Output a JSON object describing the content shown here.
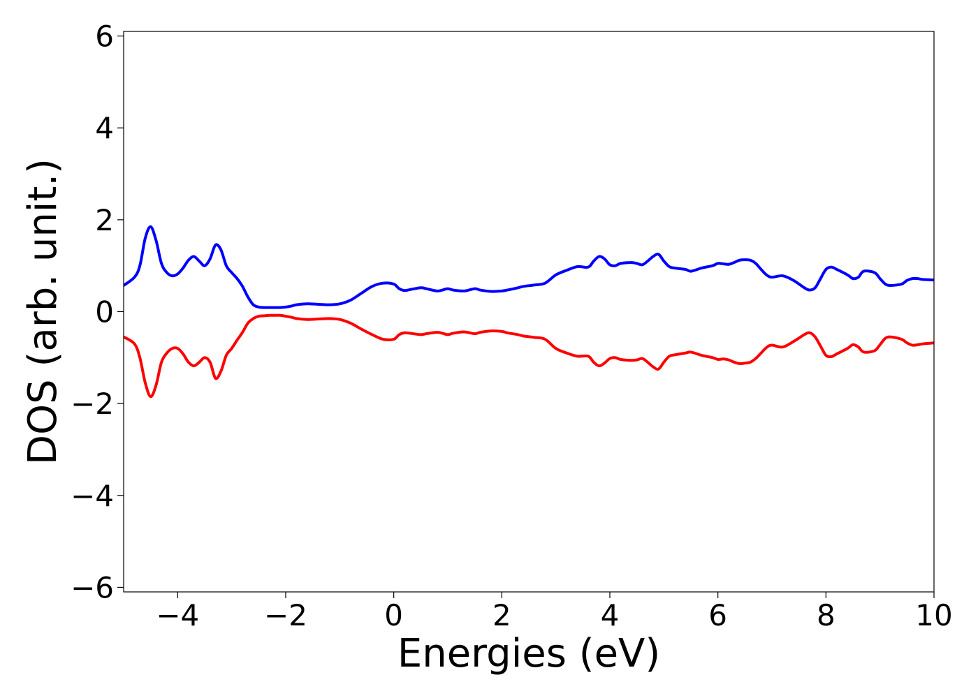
{
  "chart_data": {
    "type": "line",
    "xlabel": "Energies (eV)",
    "ylabel": "DOS (arb. unit.)",
    "xlim": [
      -5,
      10
    ],
    "ylim": [
      -6.1,
      6.1
    ],
    "xticks": [
      -4,
      -2,
      0,
      2,
      4,
      6,
      8,
      10
    ],
    "xtick_labels": [
      "−4",
      "−2",
      "0",
      "2",
      "4",
      "6",
      "8",
      "10"
    ],
    "yticks": [
      -6,
      -4,
      -2,
      0,
      2,
      4,
      6
    ],
    "ytick_labels": [
      "−6",
      "−4",
      "−2",
      "0",
      "2",
      "4",
      "6"
    ],
    "grid": false,
    "legend": "none",
    "series": [
      {
        "color": "#0000ff",
        "x": [
          -5.0,
          -4.8,
          -4.7,
          -4.6,
          -4.5,
          -4.4,
          -4.3,
          -4.2,
          -4.1,
          -4.0,
          -3.9,
          -3.8,
          -3.7,
          -3.6,
          -3.5,
          -3.4,
          -3.3,
          -3.2,
          -3.1,
          -3.0,
          -2.9,
          -2.8,
          -2.7,
          -2.6,
          -2.5,
          -2.4,
          -2.3,
          -2.2,
          -2.1,
          -2.0,
          -1.9,
          -1.8,
          -1.6,
          -1.4,
          -1.2,
          -1.0,
          -0.8,
          -0.6,
          -0.4,
          -0.2,
          0.0,
          0.1,
          0.2,
          0.3,
          0.5,
          0.6,
          0.8,
          0.9,
          1.0,
          1.1,
          1.3,
          1.5,
          1.6,
          1.8,
          2.0,
          2.1,
          2.3,
          2.4,
          2.6,
          2.8,
          3.0,
          3.2,
          3.4,
          3.6,
          3.7,
          3.8,
          3.9,
          4.0,
          4.1,
          4.2,
          4.4,
          4.5,
          4.6,
          4.7,
          4.8,
          4.9,
          5.0,
          5.1,
          5.2,
          5.4,
          5.5,
          5.7,
          5.9,
          6.0,
          6.1,
          6.2,
          6.3,
          6.4,
          6.5,
          6.6,
          6.7,
          6.8,
          6.9,
          7.0,
          7.2,
          7.4,
          7.6,
          7.7,
          7.8,
          7.9,
          8.0,
          8.1,
          8.2,
          8.4,
          8.5,
          8.6,
          8.7,
          8.9,
          9.0,
          9.1,
          9.2,
          9.4,
          9.5,
          9.6,
          9.7,
          9.8,
          10.0
        ],
        "y": [
          0.57,
          0.75,
          1.0,
          1.6,
          1.85,
          1.55,
          1.05,
          0.85,
          0.78,
          0.82,
          0.95,
          1.12,
          1.2,
          1.1,
          1.0,
          1.15,
          1.45,
          1.35,
          1.0,
          0.85,
          0.72,
          0.55,
          0.32,
          0.15,
          0.1,
          0.09,
          0.09,
          0.09,
          0.09,
          0.1,
          0.12,
          0.15,
          0.17,
          0.16,
          0.15,
          0.17,
          0.25,
          0.4,
          0.55,
          0.62,
          0.6,
          0.5,
          0.46,
          0.48,
          0.52,
          0.5,
          0.45,
          0.47,
          0.5,
          0.47,
          0.45,
          0.5,
          0.47,
          0.44,
          0.45,
          0.47,
          0.52,
          0.55,
          0.58,
          0.62,
          0.8,
          0.9,
          0.98,
          0.97,
          1.1,
          1.2,
          1.15,
          1.02,
          1.0,
          1.05,
          1.07,
          1.05,
          1.02,
          1.1,
          1.2,
          1.25,
          1.1,
          0.98,
          0.95,
          0.92,
          0.88,
          0.95,
          1.0,
          1.05,
          1.04,
          1.03,
          1.07,
          1.12,
          1.13,
          1.12,
          1.05,
          0.92,
          0.8,
          0.75,
          0.78,
          0.68,
          0.52,
          0.47,
          0.52,
          0.72,
          0.92,
          0.97,
          0.92,
          0.8,
          0.72,
          0.75,
          0.88,
          0.85,
          0.72,
          0.6,
          0.57,
          0.6,
          0.68,
          0.72,
          0.72,
          0.7,
          0.69
        ]
      },
      {
        "color": "#ff0000",
        "x": [
          -5.0,
          -4.8,
          -4.7,
          -4.6,
          -4.5,
          -4.4,
          -4.3,
          -4.2,
          -4.1,
          -4.0,
          -3.9,
          -3.8,
          -3.7,
          -3.6,
          -3.5,
          -3.4,
          -3.3,
          -3.2,
          -3.1,
          -3.0,
          -2.9,
          -2.8,
          -2.7,
          -2.6,
          -2.5,
          -2.4,
          -2.3,
          -2.2,
          -2.1,
          -2.0,
          -1.9,
          -1.8,
          -1.6,
          -1.4,
          -1.2,
          -1.0,
          -0.8,
          -0.6,
          -0.4,
          -0.2,
          0.0,
          0.1,
          0.2,
          0.3,
          0.5,
          0.6,
          0.8,
          0.9,
          1.0,
          1.1,
          1.3,
          1.5,
          1.6,
          1.8,
          2.0,
          2.1,
          2.3,
          2.4,
          2.6,
          2.8,
          3.0,
          3.2,
          3.4,
          3.6,
          3.7,
          3.8,
          3.9,
          4.0,
          4.1,
          4.2,
          4.4,
          4.5,
          4.6,
          4.7,
          4.8,
          4.9,
          5.0,
          5.1,
          5.2,
          5.4,
          5.5,
          5.7,
          5.9,
          6.0,
          6.1,
          6.2,
          6.3,
          6.4,
          6.5,
          6.6,
          6.7,
          6.8,
          6.9,
          7.0,
          7.2,
          7.4,
          7.6,
          7.7,
          7.8,
          7.9,
          8.0,
          8.1,
          8.2,
          8.4,
          8.5,
          8.6,
          8.7,
          8.9,
          9.0,
          9.1,
          9.2,
          9.4,
          9.5,
          9.6,
          9.7,
          9.8,
          10.0
        ],
        "y": [
          -0.55,
          -0.7,
          -1.0,
          -1.55,
          -1.85,
          -1.6,
          -1.1,
          -0.9,
          -0.8,
          -0.8,
          -0.92,
          -1.1,
          -1.18,
          -1.1,
          -1.0,
          -1.1,
          -1.45,
          -1.3,
          -0.95,
          -0.8,
          -0.62,
          -0.45,
          -0.25,
          -0.15,
          -0.1,
          -0.09,
          -0.08,
          -0.08,
          -0.08,
          -0.1,
          -0.12,
          -0.15,
          -0.17,
          -0.16,
          -0.15,
          -0.17,
          -0.25,
          -0.38,
          -0.5,
          -0.6,
          -0.6,
          -0.5,
          -0.46,
          -0.47,
          -0.5,
          -0.48,
          -0.45,
          -0.47,
          -0.5,
          -0.47,
          -0.44,
          -0.48,
          -0.45,
          -0.42,
          -0.43,
          -0.46,
          -0.5,
          -0.53,
          -0.56,
          -0.6,
          -0.8,
          -0.9,
          -0.97,
          -0.97,
          -1.1,
          -1.18,
          -1.12,
          -1.02,
          -1.0,
          -1.04,
          -1.06,
          -1.05,
          -1.02,
          -1.1,
          -1.2,
          -1.25,
          -1.1,
          -0.97,
          -0.94,
          -0.9,
          -0.88,
          -0.95,
          -1.0,
          -1.04,
          -1.03,
          -1.05,
          -1.1,
          -1.13,
          -1.12,
          -1.1,
          -1.02,
          -0.9,
          -0.78,
          -0.73,
          -0.77,
          -0.65,
          -0.5,
          -0.46,
          -0.55,
          -0.75,
          -0.95,
          -0.98,
          -0.92,
          -0.8,
          -0.72,
          -0.77,
          -0.88,
          -0.85,
          -0.72,
          -0.58,
          -0.55,
          -0.6,
          -0.68,
          -0.73,
          -0.72,
          -0.7,
          -0.68
        ]
      }
    ]
  }
}
